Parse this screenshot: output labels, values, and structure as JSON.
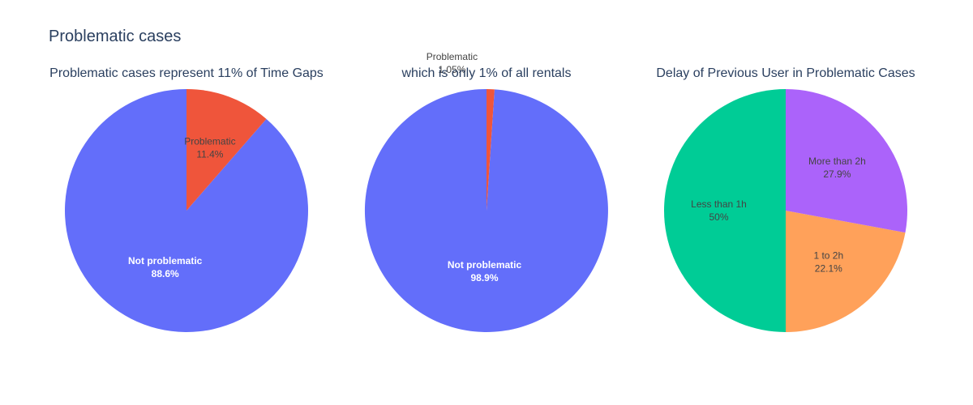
{
  "figure": {
    "title": "Problematic cases"
  },
  "chart_data": [
    {
      "type": "pie",
      "title": "Problematic cases represent 11% of Time Gaps",
      "slices": [
        {
          "label": "Not problematic",
          "value": 88.6,
          "display": "88.6%",
          "color": "#636efa",
          "text_color": "#ffffff"
        },
        {
          "label": "Problematic",
          "value": 11.4,
          "display": "11.4%",
          "color": "#ef553b",
          "text_color": "#444444"
        }
      ]
    },
    {
      "type": "pie",
      "title": "which is only 1% of all rentals",
      "slices": [
        {
          "label": "Not problematic",
          "value": 98.95,
          "display": "98.9%",
          "color": "#636efa",
          "text_color": "#ffffff"
        },
        {
          "label": "Problematic",
          "value": 1.05,
          "display": "1.05%",
          "color": "#ef553b",
          "text_color": "#444444",
          "outside": true
        }
      ]
    },
    {
      "type": "pie",
      "title": "Delay of Previous User in Problematic Cases",
      "slices": [
        {
          "label": "Less than 1h",
          "value": 50,
          "display": "50%",
          "color": "#00cc96",
          "text_color": "#444444"
        },
        {
          "label": "1 to 2h",
          "value": 22.1,
          "display": "22.1%",
          "color": "#ffa15a",
          "text_color": "#444444"
        },
        {
          "label": "More than 2h",
          "value": 27.9,
          "display": "27.9%",
          "color": "#ab63fa",
          "text_color": "#444444"
        }
      ]
    }
  ]
}
